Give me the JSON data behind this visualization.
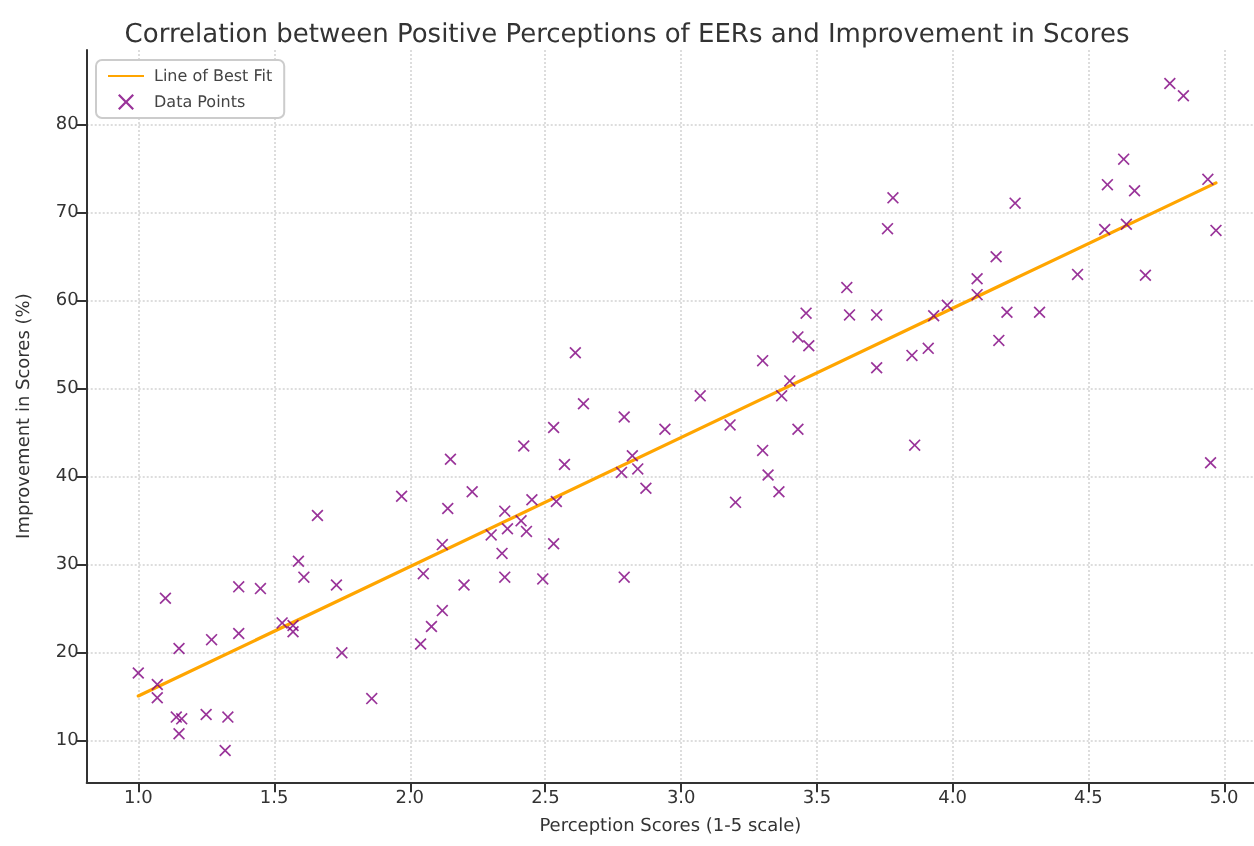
{
  "chart_data": {
    "type": "scatter",
    "title": "Correlation between Positive Perceptions of EERs and Improvement in Scores",
    "xlabel": "Perception Scores (1-5 scale)",
    "ylabel": "Improvement in Scores (%)",
    "xlim": [
      0.81,
      5.11
    ],
    "ylim": [
      5.3,
      88.5
    ],
    "xticks": [
      {
        "value": 1,
        "label": "1.0"
      },
      {
        "value": 1.5,
        "label": "1.5"
      },
      {
        "value": 2,
        "label": "2.0"
      },
      {
        "value": 2.5,
        "label": "2.5"
      },
      {
        "value": 3,
        "label": "3.0"
      },
      {
        "value": 3.5,
        "label": "3.5"
      },
      {
        "value": 4,
        "label": "4.0"
      },
      {
        "value": 4.5,
        "label": "4.5"
      },
      {
        "value": 5,
        "label": "5.0"
      }
    ],
    "yticks": [
      10,
      20,
      30,
      40,
      50,
      60,
      70,
      80
    ],
    "grid": true,
    "legend": "top left",
    "series": [
      {
        "name": "Line of Best Fit",
        "type": "line",
        "color": "#ffa500",
        "marker": "none",
        "line_style": "solid",
        "x": [
          1.0,
          4.97
        ],
        "values": [
          15.1,
          73.4
        ]
      },
      {
        "name": "Data Points",
        "color": "#800080",
        "marker": "cross",
        "x": [
          1.0,
          1.07,
          1.07,
          1.1,
          1.15,
          1.14,
          1.16,
          1.15,
          1.25,
          1.27,
          1.33,
          1.32,
          1.37,
          1.37,
          1.45,
          1.53,
          1.57,
          1.57,
          1.59,
          1.61,
          1.66,
          1.73,
          1.75,
          1.86,
          1.97,
          2.04,
          2.05,
          2.08,
          2.12,
          2.12,
          2.14,
          2.15,
          2.2,
          2.23,
          2.3,
          2.34,
          2.35,
          2.36,
          2.35,
          2.42,
          2.41,
          2.43,
          2.45,
          2.49,
          2.53,
          2.53,
          2.54,
          2.57,
          2.61,
          2.64,
          2.79,
          2.78,
          2.79,
          2.82,
          2.84,
          2.87,
          2.94,
          3.07,
          3.18,
          3.2,
          3.36,
          3.32,
          3.3,
          3.3,
          3.37,
          3.4,
          3.43,
          3.43,
          3.47,
          3.46,
          3.61,
          3.62,
          3.72,
          3.72,
          3.76,
          3.78,
          3.86,
          3.85,
          3.91,
          3.93,
          3.98,
          4.09,
          4.09,
          4.16,
          4.17,
          4.2,
          4.23,
          4.32,
          4.46,
          4.56,
          4.57,
          4.64,
          4.63,
          4.67,
          4.71,
          4.8,
          4.85,
          4.94,
          4.97,
          4.95
        ],
        "values": [
          17.7,
          16.4,
          14.9,
          26.2,
          20.5,
          12.7,
          12.5,
          10.8,
          13.0,
          21.5,
          12.7,
          8.9,
          27.5,
          22.2,
          27.3,
          23.4,
          23.1,
          22.4,
          30.4,
          28.6,
          35.6,
          27.7,
          20.0,
          14.8,
          37.8,
          21.0,
          29.0,
          23.0,
          24.8,
          32.3,
          36.4,
          42.0,
          27.7,
          38.3,
          33.4,
          31.3,
          36.1,
          34.1,
          28.6,
          43.5,
          35.0,
          33.8,
          37.4,
          28.4,
          45.6,
          32.4,
          37.2,
          41.4,
          54.1,
          48.3,
          46.8,
          40.5,
          28.6,
          42.4,
          40.9,
          38.7,
          45.4,
          49.2,
          45.9,
          37.1,
          38.3,
          40.2,
          43.0,
          53.2,
          49.2,
          50.9,
          45.4,
          55.9,
          54.9,
          58.6,
          61.5,
          58.4,
          58.4,
          52.4,
          68.2,
          71.7,
          43.6,
          53.8,
          54.6,
          58.3,
          59.5,
          62.5,
          60.7,
          65.0,
          55.5,
          58.7,
          71.1,
          58.7,
          63.0,
          68.1,
          73.2,
          68.7,
          76.1,
          72.5,
          62.9,
          84.7,
          83.3,
          73.8,
          68.0,
          41.6
        ]
      }
    ]
  }
}
